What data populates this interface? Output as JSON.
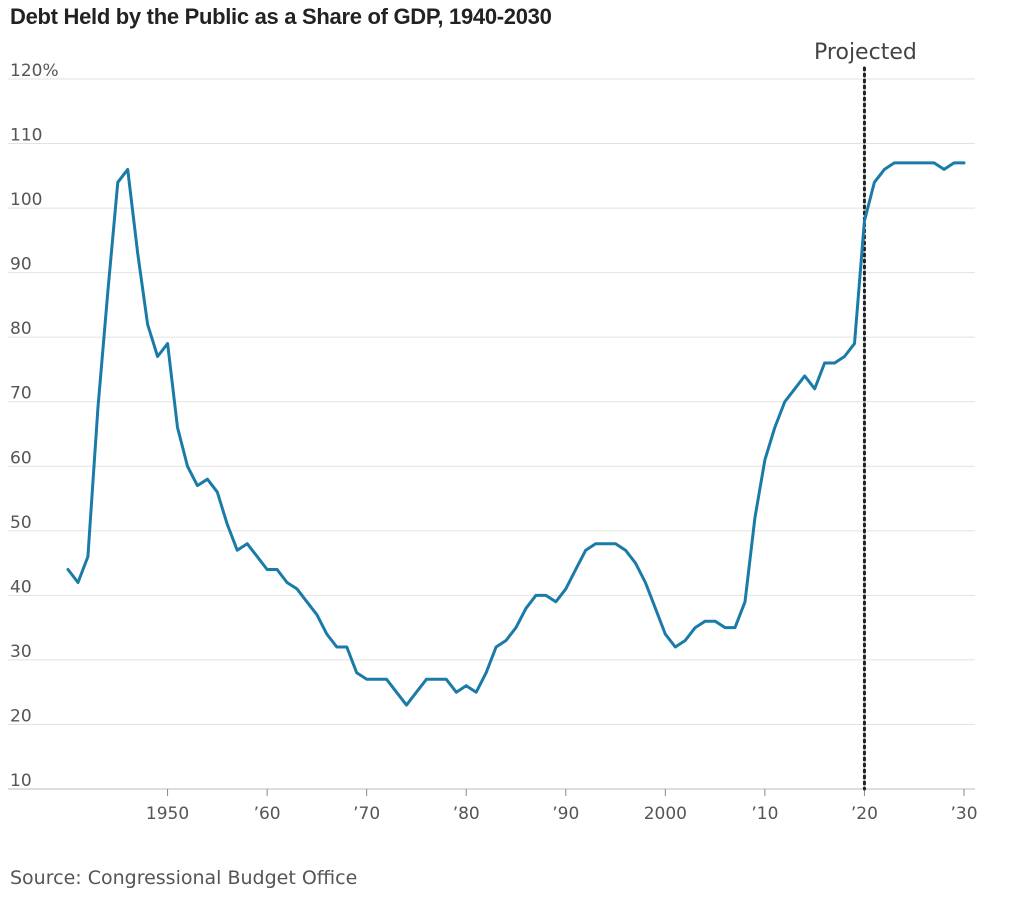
{
  "chart_data": {
    "type": "line",
    "title": "Debt Held by the Public as a Share of GDP, 1940-2030",
    "source": "Source: Congressional Budget Office",
    "annotation": "Projected",
    "projection_start_year": 2020,
    "ylim": [
      10,
      120
    ],
    "xlim": [
      1940,
      2030
    ],
    "grid": true,
    "y_ticks": [
      {
        "value": 120,
        "label": "120%"
      },
      {
        "value": 110,
        "label": "110"
      },
      {
        "value": 100,
        "label": "100"
      },
      {
        "value": 90,
        "label": "90"
      },
      {
        "value": 80,
        "label": "80"
      },
      {
        "value": 70,
        "label": "70"
      },
      {
        "value": 60,
        "label": "60"
      },
      {
        "value": 50,
        "label": "50"
      },
      {
        "value": 40,
        "label": "40"
      },
      {
        "value": 30,
        "label": "30"
      },
      {
        "value": 20,
        "label": "20"
      },
      {
        "value": 10,
        "label": "10"
      }
    ],
    "x_ticks": [
      {
        "value": 1950,
        "label": "1950"
      },
      {
        "value": 1960,
        "label": "’60"
      },
      {
        "value": 1970,
        "label": "’70"
      },
      {
        "value": 1980,
        "label": "’80"
      },
      {
        "value": 1990,
        "label": "’90"
      },
      {
        "value": 2000,
        "label": "2000"
      },
      {
        "value": 2010,
        "label": "’10"
      },
      {
        "value": 2020,
        "label": "’20"
      },
      {
        "value": 2030,
        "label": "’30"
      }
    ],
    "series": [
      {
        "color": "#1a7ba8",
        "x": [
          1940,
          1941,
          1942,
          1943,
          1944,
          1945,
          1946,
          1947,
          1948,
          1949,
          1950,
          1951,
          1952,
          1953,
          1954,
          1955,
          1956,
          1957,
          1958,
          1959,
          1960,
          1961,
          1962,
          1963,
          1964,
          1965,
          1966,
          1967,
          1968,
          1969,
          1970,
          1971,
          1972,
          1973,
          1974,
          1975,
          1976,
          1977,
          1978,
          1979,
          1980,
          1981,
          1982,
          1983,
          1984,
          1985,
          1986,
          1987,
          1988,
          1989,
          1990,
          1991,
          1992,
          1993,
          1994,
          1995,
          1996,
          1997,
          1998,
          1999,
          2000,
          2001,
          2002,
          2003,
          2004,
          2005,
          2006,
          2007,
          2008,
          2009,
          2010,
          2011,
          2012,
          2013,
          2014,
          2015,
          2016,
          2017,
          2018,
          2019,
          2020,
          2021,
          2022,
          2023,
          2024,
          2025,
          2026,
          2027,
          2028,
          2029,
          2030
        ],
        "values": [
          44,
          42,
          46,
          69,
          87,
          104,
          106,
          93,
          82,
          77,
          79,
          66,
          60,
          57,
          58,
          56,
          51,
          47,
          48,
          46,
          44,
          44,
          42,
          41,
          39,
          37,
          34,
          32,
          32,
          28,
          27,
          27,
          27,
          25,
          23,
          25,
          27,
          27,
          27,
          25,
          26,
          25,
          28,
          32,
          33,
          35,
          38,
          40,
          40,
          39,
          41,
          44,
          47,
          48,
          48,
          48,
          47,
          45,
          42,
          38,
          34,
          32,
          33,
          35,
          36,
          36,
          35,
          35,
          39,
          52,
          61,
          66,
          70,
          72,
          74,
          72,
          76,
          76,
          77,
          79,
          98,
          104,
          106,
          107,
          107,
          107,
          107,
          107,
          106,
          107,
          107
        ]
      }
    ]
  }
}
